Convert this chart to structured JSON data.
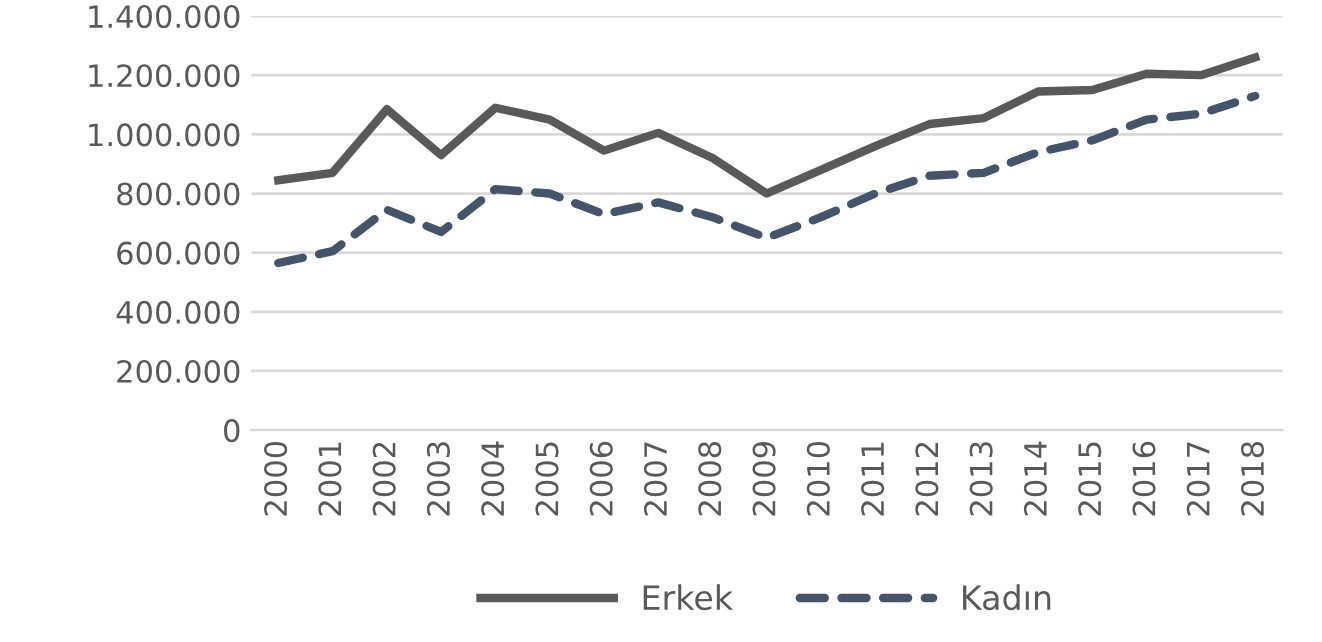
{
  "chart_data": {
    "type": "line",
    "categories": [
      "2000",
      "2001",
      "2002",
      "2003",
      "2004",
      "2005",
      "2006",
      "2007",
      "2008",
      "2009",
      "2010",
      "2011",
      "2012",
      "2013",
      "2014",
      "2015",
      "2016",
      "2017",
      "2018"
    ],
    "series": [
      {
        "name": "Erkek",
        "color": "#595959",
        "line_style": "solid",
        "values": [
          845000,
          870000,
          1085000,
          930000,
          1090000,
          1050000,
          945000,
          1005000,
          920000,
          800000,
          880000,
          960000,
          1035000,
          1055000,
          1145000,
          1150000,
          1205000,
          1200000,
          1260000
        ]
      },
      {
        "name": "Kadın",
        "color": "#44546a",
        "line_style": "dashed",
        "values": [
          565000,
          605000,
          745000,
          670000,
          815000,
          800000,
          730000,
          770000,
          720000,
          650000,
          720000,
          800000,
          860000,
          870000,
          940000,
          980000,
          1050000,
          1070000,
          1130000
        ]
      }
    ],
    "ylim": [
      0,
      1400000
    ],
    "yticks": [
      0,
      {
        "value": 200000,
        "label": "200.000"
      },
      {
        "value": 400000,
        "label": "400.000"
      },
      {
        "value": 600000,
        "label": "600.000"
      },
      {
        "value": 800000,
        "label": "800.000"
      },
      {
        "value": 1000000,
        "label": "1.000.000"
      },
      {
        "value": 1200000,
        "label": "1.200.000"
      },
      {
        "value": 1400000,
        "label": "1.400.000"
      }
    ],
    "grid": "y",
    "legend": "bottom",
    "marker": "none"
  }
}
